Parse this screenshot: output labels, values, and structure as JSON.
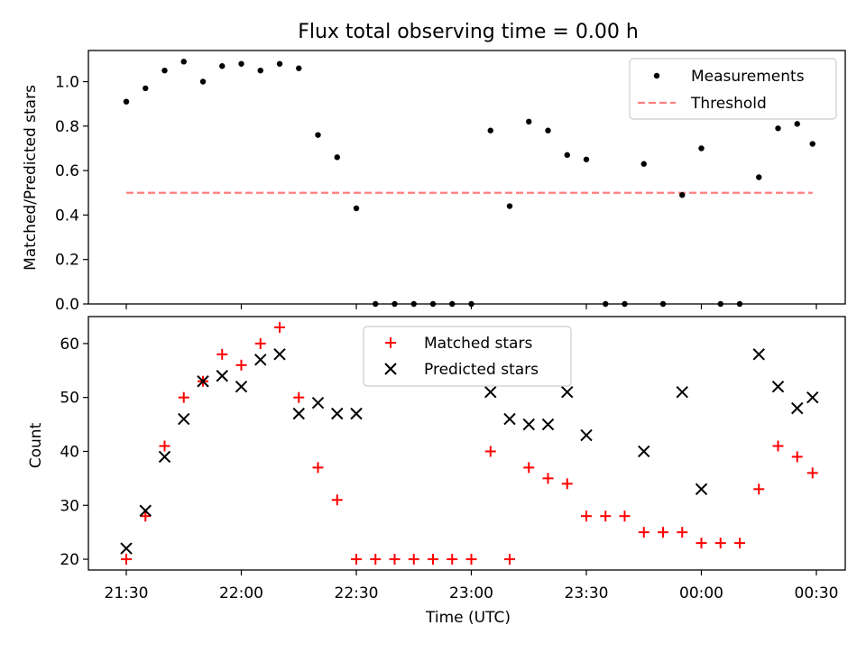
{
  "chart_data": [
    {
      "type": "scatter",
      "title": "Flux total observing time = 0.00 h",
      "xlabel": "",
      "ylabel": "Matched/Predicted stars",
      "ylim": [
        0,
        1.14
      ],
      "yticks": [
        "0.0",
        "0.2",
        "0.4",
        "0.6",
        "0.8",
        "1.0"
      ],
      "legend_position": "top-right",
      "threshold": {
        "name": "Threshold",
        "value": 0.5,
        "x_start": "21:30",
        "x_end": "00:29",
        "color": "#ff7f7f"
      },
      "series": [
        {
          "name": "Measurements",
          "color": "#000000",
          "marker": "dot",
          "x": [
            "21:30",
            "21:35",
            "21:40",
            "21:45",
            "21:50",
            "21:55",
            "22:00",
            "22:05",
            "22:10",
            "22:15",
            "22:20",
            "22:25",
            "22:30",
            "22:35",
            "22:40",
            "22:45",
            "22:50",
            "22:55",
            "23:00",
            "23:05",
            "23:10",
            "23:15",
            "23:20",
            "23:25",
            "23:30",
            "23:35",
            "23:40",
            "23:45",
            "23:50",
            "23:55",
            "00:00",
            "00:05",
            "00:10",
            "00:15",
            "00:20",
            "00:25",
            "00:29"
          ],
          "y": [
            0.91,
            0.97,
            1.05,
            1.09,
            1.0,
            1.07,
            1.08,
            1.05,
            1.08,
            1.06,
            0.76,
            0.66,
            0.43,
            0,
            0,
            0,
            0,
            0,
            0,
            0.78,
            0.44,
            0.82,
            0.78,
            0.67,
            0.65,
            0,
            0,
            0.63,
            0,
            0.49,
            0.7,
            0,
            0,
            0.57,
            0.79,
            0.81,
            0.72
          ]
        }
      ]
    },
    {
      "type": "scatter",
      "title": "",
      "xlabel": "Time (UTC)",
      "ylabel": "Count",
      "ylim": [
        18,
        65
      ],
      "yticks": [
        "20",
        "30",
        "40",
        "50",
        "60"
      ],
      "xticks": [
        "21:30",
        "22:00",
        "22:30",
        "23:00",
        "23:30",
        "00:00",
        "00:30"
      ],
      "legend_position": "top-center",
      "series": [
        {
          "name": "Matched stars",
          "color": "#ff0000",
          "marker": "plus",
          "x": [
            "21:30",
            "21:35",
            "21:40",
            "21:45",
            "21:50",
            "21:55",
            "22:00",
            "22:05",
            "22:10",
            "22:15",
            "22:20",
            "22:25",
            "22:30",
            "22:35",
            "22:40",
            "22:45",
            "22:50",
            "22:55",
            "23:00",
            "23:05",
            "23:10",
            "23:15",
            "23:20",
            "23:25",
            "23:30",
            "23:35",
            "23:40",
            "23:45",
            "23:50",
            "23:55",
            "00:00",
            "00:05",
            "00:10",
            "00:15",
            "00:20",
            "00:25",
            "00:29"
          ],
          "y": [
            20,
            28,
            41,
            50,
            53,
            58,
            56,
            60,
            63,
            50,
            37,
            31,
            20,
            20,
            20,
            20,
            20,
            20,
            20,
            40,
            20,
            37,
            35,
            34,
            28,
            28,
            28,
            25,
            25,
            25,
            23,
            23,
            23,
            33,
            41,
            39,
            36
          ]
        },
        {
          "name": "Predicted stars",
          "color": "#000000",
          "marker": "x",
          "x": [
            "21:30",
            "21:35",
            "21:40",
            "21:45",
            "21:50",
            "21:55",
            "22:00",
            "22:05",
            "22:10",
            "22:15",
            "22:20",
            "22:25",
            "22:30",
            "23:05",
            "23:10",
            "23:15",
            "23:20",
            "23:25",
            "23:30",
            "23:45",
            "23:55",
            "00:00",
            "00:15",
            "00:20",
            "00:25",
            "00:29"
          ],
          "y": [
            22,
            29,
            39,
            46,
            53,
            54,
            52,
            57,
            58,
            47,
            49,
            47,
            47,
            51,
            46,
            45,
            45,
            51,
            43,
            40,
            51,
            33,
            58,
            52,
            48,
            50
          ]
        }
      ]
    }
  ]
}
